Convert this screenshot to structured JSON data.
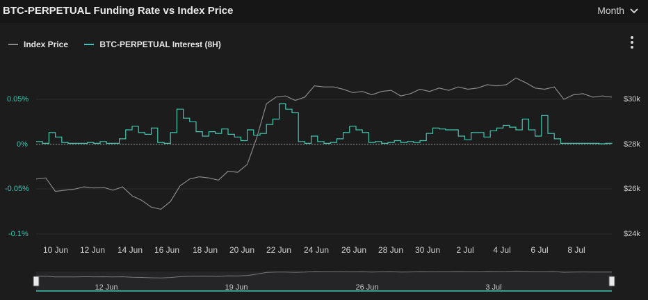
{
  "header": {
    "title": "BTC-PERPETUAL Funding Rate vs Index Price",
    "range_label": "Month"
  },
  "legend": [
    {
      "label": "Index Price",
      "color": "#8a8a8a"
    },
    {
      "label": "BTC-PERPETUAL Interest (8H)",
      "color": "#3fc7b0"
    }
  ],
  "colors": {
    "price": "#8a8a8a",
    "funding": "#3fc7b0",
    "background": "#1c1c1d"
  },
  "icons": {
    "range": "chevron-down-icon",
    "menu": "kebab-menu-icon",
    "navigator": "drag-handle-icon"
  },
  "chart_data": {
    "type": "line",
    "title": "BTC-PERPETUAL Funding Rate vs Index Price",
    "x_start": "2023-06-09",
    "x_end": "2023-07-09",
    "x_ticks": [
      "10 Jun",
      "12 Jun",
      "14 Jun",
      "16 Jun",
      "18 Jun",
      "20 Jun",
      "22 Jun",
      "24 Jun",
      "26 Jun",
      "28 Jun",
      "30 Jun",
      "2 Jul",
      "4 Jul",
      "6 Jul",
      "8 Jul"
    ],
    "y_left": {
      "ticks": [
        "0.05%",
        "0%",
        "-0.05%",
        "-0.1%"
      ],
      "range": [
        -0.1,
        0.05
      ],
      "unit": "%"
    },
    "y_right": {
      "ticks": [
        "$30k",
        "$28k",
        "$26k",
        "$24k"
      ],
      "range": [
        24000,
        30000
      ]
    },
    "legend_position": "top-left",
    "grid": true,
    "series": [
      {
        "name": "Index Price",
        "axis": "right",
        "color": "#8a8a8a",
        "x": [
          "2023-06-09",
          "2023-06-09T12:00",
          "2023-06-10",
          "2023-06-10T12:00",
          "2023-06-11",
          "2023-06-11T12:00",
          "2023-06-12",
          "2023-06-12T12:00",
          "2023-06-13",
          "2023-06-13T12:00",
          "2023-06-14",
          "2023-06-14T12:00",
          "2023-06-15",
          "2023-06-15T12:00",
          "2023-06-16",
          "2023-06-16T12:00",
          "2023-06-17",
          "2023-06-17T12:00",
          "2023-06-18",
          "2023-06-18T12:00",
          "2023-06-19",
          "2023-06-19T12:00",
          "2023-06-20",
          "2023-06-20T12:00",
          "2023-06-21",
          "2023-06-21T12:00",
          "2023-06-22",
          "2023-06-22T12:00",
          "2023-06-23",
          "2023-06-23T12:00",
          "2023-06-24",
          "2023-06-24T12:00",
          "2023-06-25",
          "2023-06-25T12:00",
          "2023-06-26",
          "2023-06-26T12:00",
          "2023-06-27",
          "2023-06-27T12:00",
          "2023-06-28",
          "2023-06-28T12:00",
          "2023-06-29",
          "2023-06-29T12:00",
          "2023-06-30",
          "2023-06-30T12:00",
          "2023-07-01",
          "2023-07-01T12:00",
          "2023-07-02",
          "2023-07-02T12:00",
          "2023-07-03",
          "2023-07-03T12:00",
          "2023-07-04",
          "2023-07-04T12:00",
          "2023-07-05",
          "2023-07-05T12:00",
          "2023-07-06",
          "2023-07-06T12:00",
          "2023-07-07",
          "2023-07-07T12:00",
          "2023-07-08",
          "2023-07-08T12:00",
          "2023-07-09"
        ],
        "values": [
          26450,
          26500,
          25900,
          25950,
          26000,
          26100,
          26050,
          26080,
          25950,
          26100,
          25700,
          25500,
          25200,
          25100,
          25450,
          26150,
          26450,
          26550,
          26500,
          26400,
          26800,
          26750,
          27100,
          28300,
          29800,
          30100,
          30150,
          29950,
          30100,
          30600,
          30550,
          30550,
          30450,
          30300,
          30350,
          30200,
          30350,
          30400,
          30150,
          30250,
          30450,
          30350,
          30500,
          30400,
          30550,
          30450,
          30500,
          30650,
          30600,
          30650,
          30950,
          30750,
          30500,
          30450,
          30550,
          30000,
          30200,
          30250,
          30100,
          30150,
          30100
        ]
      },
      {
        "name": "BTC-PERPETUAL Interest (8H)",
        "axis": "left",
        "color": "#3fc7b0",
        "x": [
          "2023-06-09",
          "2023-06-09T08:00",
          "2023-06-09T16:00",
          "2023-06-10",
          "2023-06-10T08:00",
          "2023-06-10T16:00",
          "2023-06-11",
          "2023-06-11T08:00",
          "2023-06-11T16:00",
          "2023-06-12",
          "2023-06-12T08:00",
          "2023-06-12T16:00",
          "2023-06-13",
          "2023-06-13T08:00",
          "2023-06-13T16:00",
          "2023-06-14",
          "2023-06-14T08:00",
          "2023-06-14T16:00",
          "2023-06-15",
          "2023-06-15T08:00",
          "2023-06-15T16:00",
          "2023-06-16",
          "2023-06-16T08:00",
          "2023-06-16T16:00",
          "2023-06-17",
          "2023-06-17T08:00",
          "2023-06-17T16:00",
          "2023-06-18",
          "2023-06-18T08:00",
          "2023-06-18T16:00",
          "2023-06-19",
          "2023-06-19T08:00",
          "2023-06-19T16:00",
          "2023-06-20",
          "2023-06-20T08:00",
          "2023-06-20T16:00",
          "2023-06-21",
          "2023-06-21T08:00",
          "2023-06-21T16:00",
          "2023-06-22",
          "2023-06-22T08:00",
          "2023-06-22T16:00",
          "2023-06-23",
          "2023-06-23T08:00",
          "2023-06-23T16:00",
          "2023-06-24",
          "2023-06-24T08:00",
          "2023-06-24T16:00",
          "2023-06-25",
          "2023-06-25T08:00",
          "2023-06-25T16:00",
          "2023-06-26",
          "2023-06-26T08:00",
          "2023-06-26T16:00",
          "2023-06-27",
          "2023-06-27T08:00",
          "2023-06-27T16:00",
          "2023-06-28",
          "2023-06-28T08:00",
          "2023-06-28T16:00",
          "2023-06-29",
          "2023-06-29T08:00",
          "2023-06-29T16:00",
          "2023-06-30",
          "2023-06-30T08:00",
          "2023-06-30T16:00",
          "2023-07-01",
          "2023-07-01T08:00",
          "2023-07-01T16:00",
          "2023-07-02",
          "2023-07-02T08:00",
          "2023-07-02T16:00",
          "2023-07-03",
          "2023-07-03T08:00",
          "2023-07-03T16:00",
          "2023-07-04",
          "2023-07-04T08:00",
          "2023-07-04T16:00",
          "2023-07-05",
          "2023-07-05T08:00",
          "2023-07-05T16:00",
          "2023-07-06",
          "2023-07-06T08:00",
          "2023-07-06T16:00",
          "2023-07-07",
          "2023-07-07T08:00",
          "2023-07-07T16:00",
          "2023-07-08",
          "2023-07-08T08:00",
          "2023-07-08T16:00",
          "2023-07-09"
        ],
        "values": [
          0.003,
          0.001,
          0.013,
          0.008,
          0.002,
          0.001,
          0.001,
          0.001,
          0.002,
          0.001,
          0.003,
          0.001,
          0.001,
          0.006,
          0.016,
          0.02,
          0.013,
          0.011,
          0.018,
          0.002,
          0.001,
          0.013,
          0.039,
          0.029,
          0.025,
          0.014,
          0.009,
          0.014,
          0.012,
          0.017,
          0.011,
          0.008,
          0.004,
          0.016,
          0.01,
          0.012,
          0.022,
          0.028,
          0.045,
          0.039,
          0.035,
          0.003,
          0.001,
          0.009,
          0.003,
          0.001,
          0.002,
          0.006,
          0.013,
          0.02,
          0.016,
          0.013,
          0.002,
          0.003,
          0.001,
          0.002,
          0.004,
          0.002,
          0.003,
          0.002,
          0.004,
          0.012,
          0.018,
          0.017,
          0.016,
          0.016,
          0.009,
          0.005,
          0.013,
          0.013,
          0.008,
          0.015,
          0.018,
          0.021,
          0.019,
          0.016,
          0.028,
          0.016,
          0.009,
          0.032,
          0.012,
          0.006,
          0.001,
          0.001,
          0.001,
          0.001,
          0.001,
          0.001,
          0.0005,
          0.001,
          0.0003
        ]
      }
    ]
  }
}
